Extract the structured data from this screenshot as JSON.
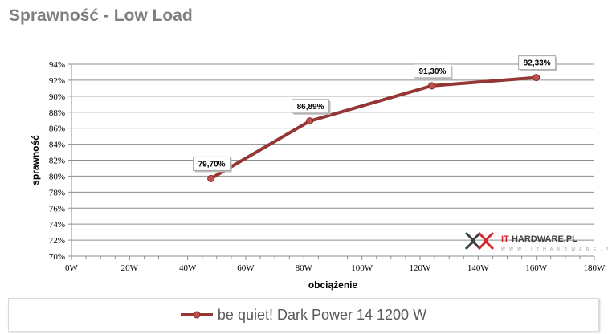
{
  "chart_data": {
    "type": "line",
    "title": "Sprawność - Low Load",
    "xlabel": "obciążenie",
    "ylabel": "sprawność",
    "xlim": [
      0,
      180
    ],
    "ylim": [
      70,
      94
    ],
    "x_ticks": [
      "0W",
      "20W",
      "40W",
      "60W",
      "80W",
      "100W",
      "120W",
      "140W",
      "160W",
      "180W"
    ],
    "y_ticks": [
      "70%",
      "72%",
      "74%",
      "76%",
      "78%",
      "80%",
      "82%",
      "84%",
      "86%",
      "88%",
      "90%",
      "92%",
      "94%"
    ],
    "grid": "horizontal",
    "legend": "bottom",
    "series": [
      {
        "name": "be quiet! Dark Power 14 1200 W",
        "color": "#943634",
        "x": [
          48,
          82,
          124,
          160
        ],
        "y": [
          79.7,
          86.89,
          91.3,
          92.33
        ],
        "labels": [
          "79,70%",
          "86,89%",
          "91,30%",
          "92,33%"
        ]
      }
    ]
  },
  "watermark": "ITHARDWARE.PL www.ithardware.pl"
}
